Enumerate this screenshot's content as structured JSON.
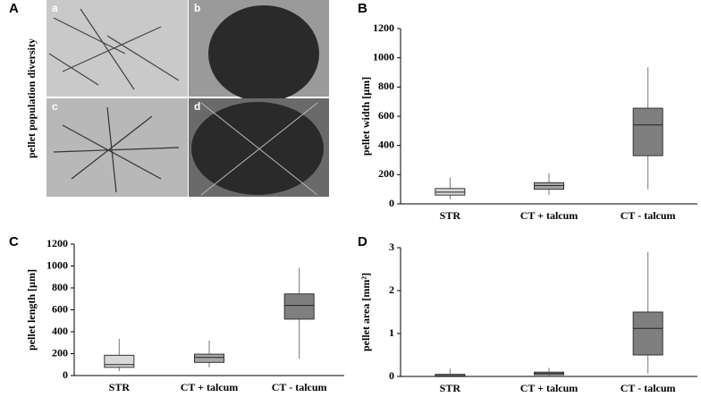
{
  "panel_a": {
    "panel": "A",
    "ylabel": "pellet population diversity",
    "images": [
      "a",
      "b",
      "c",
      "d"
    ]
  },
  "chart_data": [
    {
      "type": "box",
      "panel": "B",
      "ylabel": "pellet width [µm]",
      "categories": [
        "STR",
        "CT + talcum",
        "CT - talcum"
      ],
      "colors": [
        "#d9d9d9",
        "#a6a6a6",
        "#7f7f7f"
      ],
      "min": [
        30,
        60,
        100
      ],
      "q1": [
        60,
        100,
        330
      ],
      "median": [
        80,
        125,
        540
      ],
      "q3": [
        105,
        145,
        655
      ],
      "max": [
        180,
        210,
        935
      ],
      "ylim": [
        0,
        1200
      ],
      "yticks": [
        0,
        200,
        400,
        600,
        800,
        1000,
        1200
      ]
    },
    {
      "type": "box",
      "panel": "C",
      "ylabel": "pellet length [µm]",
      "categories": [
        "STR",
        "CT + talcum",
        "CT - talcum"
      ],
      "colors": [
        "#d9d9d9",
        "#a6a6a6",
        "#7f7f7f"
      ],
      "min": [
        40,
        75,
        155
      ],
      "q1": [
        75,
        120,
        515
      ],
      "median": [
        100,
        165,
        640
      ],
      "q3": [
        185,
        195,
        745
      ],
      "max": [
        335,
        320,
        985
      ],
      "ylim": [
        0,
        1200
      ],
      "yticks": [
        0,
        200,
        400,
        600,
        800,
        1000,
        1200
      ]
    },
    {
      "type": "box",
      "panel": "D",
      "ylabel": "pellet area [mm²]",
      "categories": [
        "STR",
        "CT + talcum",
        "CT - talcum"
      ],
      "colors": [
        "#d9d9d9",
        "#a6a6a6",
        "#7f7f7f"
      ],
      "min": [
        0,
        0.02,
        0.07
      ],
      "q1": [
        0.01,
        0.04,
        0.5
      ],
      "median": [
        0.02,
        0.07,
        1.12
      ],
      "q3": [
        0.05,
        0.1,
        1.5
      ],
      "max": [
        0.18,
        0.2,
        2.9
      ],
      "ylim": [
        0,
        3
      ],
      "yticks": [
        0,
        1,
        2,
        3
      ]
    }
  ]
}
